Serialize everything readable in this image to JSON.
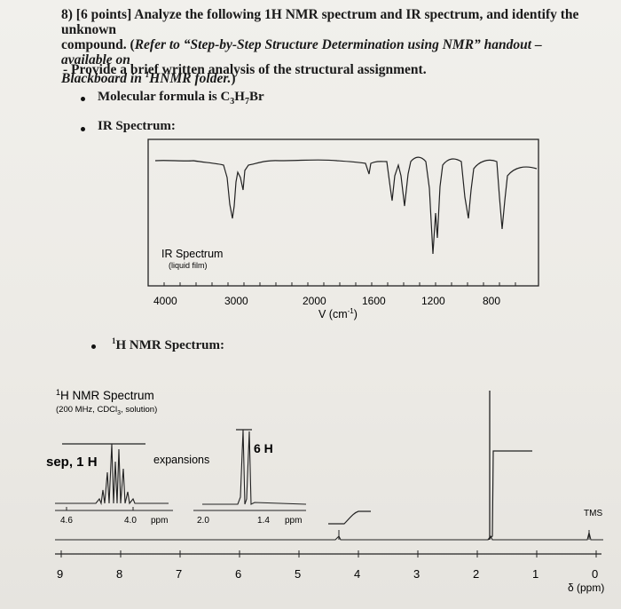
{
  "question": {
    "number_points": "8) [6 points] Analyze the following 1H NMR spectrum and IR spectrum, and identify the unknown",
    "line2_start": "compound. (",
    "line2_italic": "Refer to “Step-by-Step Structure Determination using NMR” handout – available on",
    "line3_italic_a": "Blackboard in ",
    "line3_sup": "1",
    "line3_italic_b": "HNMR folder.",
    "line3_end": ")",
    "task_prefix": "- Provide a ",
    "task_bold": "brief written analysis of the structural assignment."
  },
  "bullets": {
    "formula_label": "Molecular formula is ",
    "formula": "C3H7Br",
    "ir_label": "IR Spectrum:",
    "nmr_sup": "1",
    "nmr_label": "H NMR Spectrum:"
  },
  "ir": {
    "title": "IR Spectrum",
    "subtitle": "(liquid film)",
    "ticks": [
      "4000",
      "3000",
      "2000",
      "1600",
      "1200",
      "800"
    ],
    "axis_label": "V (cm",
    "axis_sup": "-1",
    "axis_end": ")"
  },
  "nmr": {
    "title_sup": "1",
    "title": "H NMR Spectrum",
    "conditions": "(200 MHz, CDCl",
    "conditions_sub": "3",
    "conditions_end": ", solution)",
    "sep_label": "sep, 1 H",
    "expansions_label": "expansions",
    "six_h_label": "6 H",
    "tms_label": "TMS",
    "exp1_ticks": [
      "4.6",
      "4.0",
      "ppm"
    ],
    "exp2_ticks": [
      "2.0",
      "1.4",
      "ppm"
    ],
    "axis_ticks": [
      "9",
      "8",
      "7",
      "6",
      "5",
      "4",
      "3",
      "2",
      "1"
    ],
    "zero_label": "0",
    "delta_label": "δ (ppm)"
  }
}
